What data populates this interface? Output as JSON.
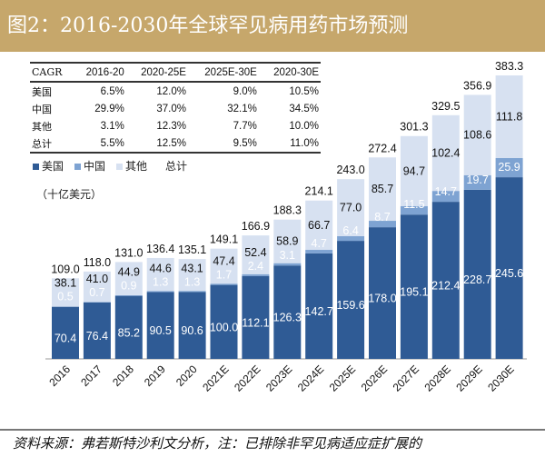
{
  "title": "图2：2016-2030年全球罕见病用药市场预测",
  "table": {
    "headers": [
      "CAGR",
      "2016-20",
      "2020-25E",
      "2025E-30E",
      "2020-30E"
    ],
    "rows": [
      [
        "美国",
        "6.5%",
        "12.0%",
        "9.0%",
        "10.5%"
      ],
      [
        "中国",
        "29.9%",
        "37.0%",
        "32.1%",
        "34.5%"
      ],
      [
        "其他",
        "3.1%",
        "12.3%",
        "7.7%",
        "10.0%"
      ],
      [
        "总计",
        "5.5%",
        "12.5%",
        "9.5%",
        "11.0%"
      ]
    ]
  },
  "unit": "（十亿美元）",
  "footer": "资料来源：弗若斯特沙利文分析，注：已排除非罕见病适应症扩展的",
  "chart_data": {
    "type": "bar",
    "stacked": true,
    "categories": [
      "2016",
      "2017",
      "2018",
      "2019",
      "2020",
      "2021E",
      "2022E",
      "2023E",
      "2024E",
      "2025E",
      "2026E",
      "2027E",
      "2028E",
      "2029E",
      "2030E"
    ],
    "series": [
      {
        "name": "美国",
        "color": "#2f5b95",
        "values": [
          70.4,
          76.4,
          85.2,
          90.5,
          90.6,
          100.0,
          112.1,
          126.3,
          142.7,
          159.6,
          178.0,
          195.1,
          212.4,
          228.7,
          245.6
        ]
      },
      {
        "name": "中国",
        "color": "#7ea3d2",
        "values": [
          0.5,
          0.7,
          0.9,
          1.3,
          1.3,
          1.7,
          2.4,
          3.1,
          4.7,
          6.4,
          8.7,
          11.5,
          14.7,
          19.7,
          25.9
        ]
      },
      {
        "name": "其他",
        "color": "#d7e1f1",
        "values": [
          38.1,
          41.0,
          44.9,
          44.6,
          43.1,
          47.4,
          52.4,
          58.9,
          66.7,
          77.0,
          85.7,
          94.7,
          102.4,
          108.6,
          111.8
        ]
      }
    ],
    "totals_label": "总计",
    "totals": [
      109.0,
      118.0,
      131.0,
      136.4,
      135.1,
      149.1,
      166.9,
      188.3,
      214.1,
      243.0,
      272.4,
      301.3,
      329.5,
      356.9,
      383.3
    ],
    "ylabel": "（十亿美元）",
    "ylim": [
      0,
      383.3
    ]
  }
}
